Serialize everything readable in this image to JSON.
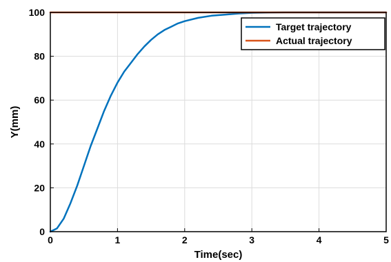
{
  "chart_data": {
    "type": "line",
    "xlabel": "Time(sec)",
    "ylabel": "Y(mm)",
    "xlim": [
      0,
      5
    ],
    "ylim": [
      0,
      100
    ],
    "xticks": [
      "0",
      "1",
      "2",
      "3",
      "4",
      "5"
    ],
    "yticks": [
      "0",
      "20",
      "40",
      "60",
      "80",
      "100"
    ],
    "grid": true,
    "legend_position": "top-right",
    "series": [
      {
        "name": "Target trajectory",
        "color": "#0072BD",
        "x": [
          0,
          0.1,
          0.2,
          0.3,
          0.4,
          0.5,
          0.6,
          0.7,
          0.8,
          0.9,
          1.0,
          1.1,
          1.2,
          1.3,
          1.4,
          1.5,
          1.6,
          1.7,
          1.8,
          1.9,
          2.0,
          2.2,
          2.4,
          2.6,
          2.8,
          3.0,
          3.5,
          4.0,
          4.5,
          5.0
        ],
        "y": [
          0,
          1.5,
          6,
          13,
          21,
          30,
          39,
          47,
          55,
          62,
          68,
          73,
          77,
          81,
          84.5,
          87.5,
          90,
          92,
          93.5,
          95,
          96,
          97.5,
          98.5,
          99,
          99.5,
          99.8,
          100,
          100,
          100,
          100
        ]
      },
      {
        "name": "Actual trajectory",
        "color": "#D95319",
        "x": [
          0,
          5
        ],
        "y": [
          100,
          100
        ]
      }
    ]
  }
}
